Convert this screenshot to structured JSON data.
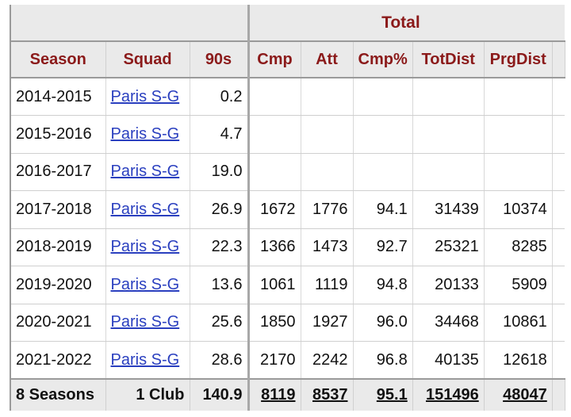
{
  "table": {
    "group_header": "Total",
    "columns": [
      "Season",
      "Squad",
      "90s",
      "Cmp",
      "Att",
      "Cmp%",
      "TotDist",
      "PrgDist"
    ],
    "rows": [
      {
        "season": "2014-2015",
        "squad": "Paris S-G",
        "nineties": "0.2",
        "cmp": "",
        "att": "",
        "cmp_pct": "",
        "totdist": "",
        "prgdist": ""
      },
      {
        "season": "2015-2016",
        "squad": "Paris S-G",
        "nineties": "4.7",
        "cmp": "",
        "att": "",
        "cmp_pct": "",
        "totdist": "",
        "prgdist": ""
      },
      {
        "season": "2016-2017",
        "squad": "Paris S-G",
        "nineties": "19.0",
        "cmp": "",
        "att": "",
        "cmp_pct": "",
        "totdist": "",
        "prgdist": ""
      },
      {
        "season": "2017-2018",
        "squad": "Paris S-G",
        "nineties": "26.9",
        "cmp": "1672",
        "att": "1776",
        "cmp_pct": "94.1",
        "totdist": "31439",
        "prgdist": "10374"
      },
      {
        "season": "2018-2019",
        "squad": "Paris S-G",
        "nineties": "22.3",
        "cmp": "1366",
        "att": "1473",
        "cmp_pct": "92.7",
        "totdist": "25321",
        "prgdist": "8285"
      },
      {
        "season": "2019-2020",
        "squad": "Paris S-G",
        "nineties": "13.6",
        "cmp": "1061",
        "att": "1119",
        "cmp_pct": "94.8",
        "totdist": "20133",
        "prgdist": "5909"
      },
      {
        "season": "2020-2021",
        "squad": "Paris S-G",
        "nineties": "25.6",
        "cmp": "1850",
        "att": "1927",
        "cmp_pct": "96.0",
        "totdist": "34468",
        "prgdist": "10861"
      },
      {
        "season": "2021-2022",
        "squad": "Paris S-G",
        "nineties": "28.6",
        "cmp": "2170",
        "att": "2242",
        "cmp_pct": "96.8",
        "totdist": "40135",
        "prgdist": "12618"
      }
    ],
    "footer": {
      "season": "8 Seasons",
      "squad": "1 Club",
      "nineties": "140.9",
      "cmp": "8119",
      "att": "8537",
      "cmp_pct": "95.1",
      "totdist": "151496",
      "prgdist": "48047"
    }
  }
}
